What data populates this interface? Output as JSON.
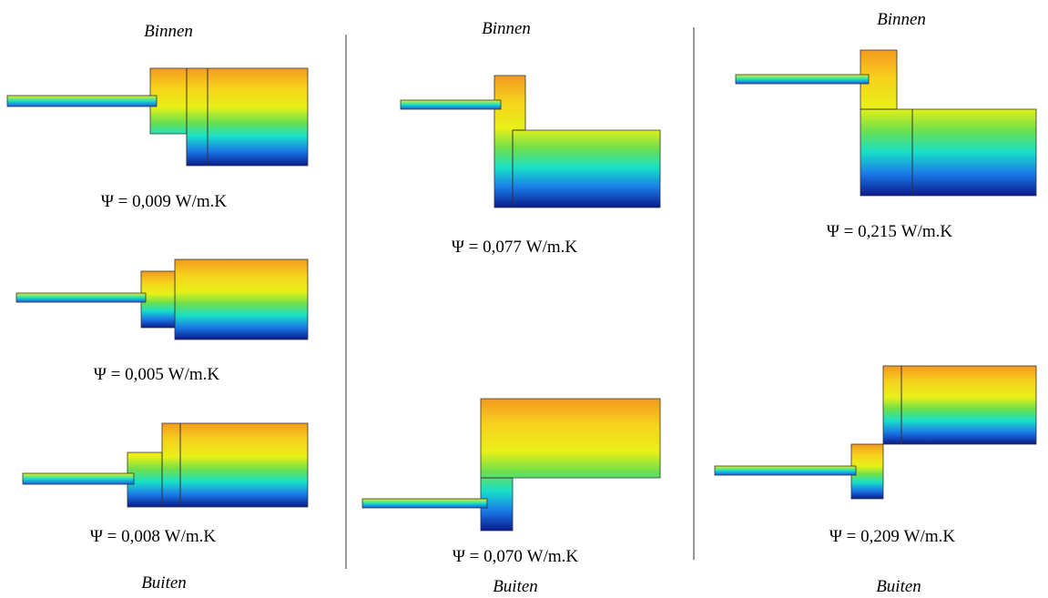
{
  "columns": [
    {
      "top": "Binnen",
      "bottom": "Buiten",
      "panels": [
        {
          "psi": "Ψ = 0,009 W/m.K"
        },
        {
          "psi": "Ψ = 0,005 W/m.K"
        },
        {
          "psi": "Ψ = 0,008 W/m.K"
        }
      ]
    },
    {
      "top": "Binnen",
      "bottom": "Buiten",
      "panels": [
        {
          "psi": "Ψ = 0,077 W/m.K"
        },
        {
          "psi": "Ψ = 0,070 W/m.K"
        }
      ]
    },
    {
      "top": "Binnen",
      "bottom": "Buiten",
      "panels": [
        {
          "psi": "Ψ = 0,215 W/m.K"
        },
        {
          "psi": "Ψ = 0,209 W/m.K"
        }
      ]
    }
  ]
}
